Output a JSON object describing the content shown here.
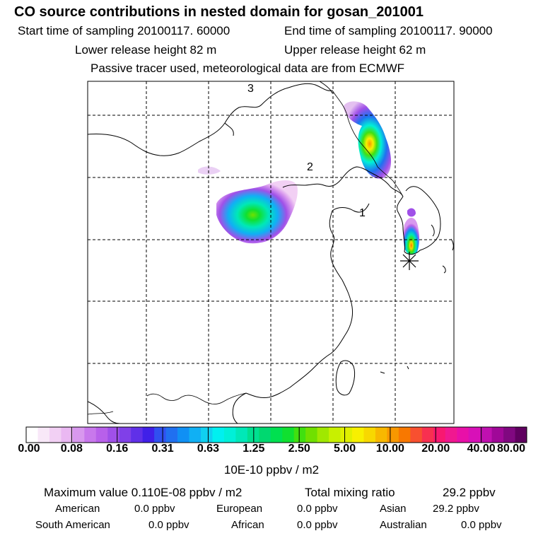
{
  "title": "CO  source contributions in nested domain for gosan_201001",
  "header": {
    "start_time": "Start time of sampling 20100117. 60000",
    "end_time": "End time of sampling 20100117. 90000",
    "lower_release": "Lower release height   82 m",
    "upper_release": "Upper release height   62 m",
    "tracer_note": "Passive tracer used, meteorological data are from ECMWF"
  },
  "map": {
    "region_labels": [
      "3",
      "2",
      "1"
    ],
    "receptor_symbol": "✳"
  },
  "colorbar": {
    "labels": [
      "0.00",
      "0.08",
      "0.16",
      "0.31",
      "0.63",
      "1.25",
      "2.50",
      "5.00",
      "10.00",
      "20.00",
      "40.00",
      "80.00"
    ],
    "colors": [
      "#ffffff",
      "#f8e8f8",
      "#f2d0f4",
      "#eab8f2",
      "#d898ee",
      "#c878ec",
      "#b860ea",
      "#a050e8",
      "#8040e8",
      "#6030e8",
      "#4020e8",
      "#3050f0",
      "#2070f0",
      "#1090f4",
      "#10b0f4",
      "#10d0f0",
      "#00f0f0",
      "#00f0d8",
      "#00e8b8",
      "#00e090",
      "#00d870",
      "#00e050",
      "#10e030",
      "#40e010",
      "#70e000",
      "#a0e800",
      "#c8f000",
      "#e0f000",
      "#f8f000",
      "#f8d800",
      "#f8b800",
      "#f89800",
      "#f87800",
      "#f85030",
      "#f83050",
      "#f81870",
      "#f01890",
      "#e810a8",
      "#d810b8",
      "#c010b0",
      "#a00898",
      "#800880",
      "#600060"
    ],
    "unit": "10E-10 ppbv / m2"
  },
  "summary": {
    "max_label": "Maximum value  0.110E-08 ppbv / m2",
    "total_label": "Total mixing ratio",
    "total_value": "29.2 ppbv"
  },
  "regions": [
    {
      "name": "American",
      "value": "0.0 ppbv"
    },
    {
      "name": "European",
      "value": "0.0 ppbv"
    },
    {
      "name": "Asian",
      "value": "29.2 ppbv"
    },
    {
      "name": "South American",
      "value": "0.0 ppbv"
    },
    {
      "name": "African",
      "value": "0.0 ppbv"
    },
    {
      "name": "Australian",
      "value": "0.0 ppbv"
    }
  ]
}
